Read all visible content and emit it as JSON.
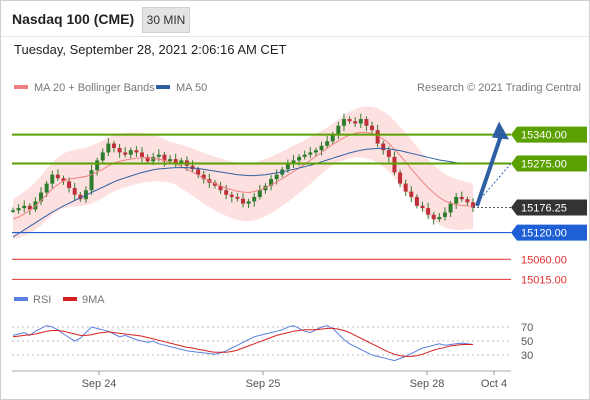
{
  "header": {
    "title": "Nasdaq 100 (CME)",
    "timeframe": "30 MIN",
    "datetime": "Tuesday, September 28, 2021 2:06:16 AM CET"
  },
  "legend": {
    "ma20": "MA 20 + Bollinger Bands",
    "ma50": "MA 50",
    "credit": "Research © 2021 Trading Central"
  },
  "colors": {
    "ma20": "#f08080",
    "ma50": "#2e5fa3",
    "bollinger_fill": "#fde0e0",
    "resistance": "#5aa000",
    "support": "#1e5fd6",
    "lower_levels": "#e03030",
    "candle": "#2e7d2e",
    "candle_down": "#c0303a",
    "arrow": "#2e5fa3",
    "last_price_badge": "#333333",
    "rsi": "#5b7fe0",
    "rsi_9ma": "#d62020"
  },
  "levels": [
    {
      "label": "15340.00",
      "value": 15340,
      "style": "green-badge"
    },
    {
      "label": "15275.00",
      "value": 15275,
      "style": "green-badge"
    },
    {
      "label": "15176.25",
      "value": 15176.25,
      "style": "dark-badge"
    },
    {
      "label": "15120.00",
      "value": 15120,
      "style": "blue-badge"
    },
    {
      "label": "15060.00",
      "value": 15060,
      "style": "red-text"
    },
    {
      "label": "15015.00",
      "value": 15015,
      "style": "red-text"
    }
  ],
  "rsi_panel": {
    "legend_rsi": "RSI",
    "legend_9ma": "9MA",
    "ticks": [
      "70",
      "50",
      "30"
    ]
  },
  "x_axis": {
    "labels": [
      "Sep 24",
      "Sep 25",
      "Sep 28",
      "Oct 4"
    ]
  },
  "chart_data": {
    "type": "candlestick",
    "ylim": [
      15000,
      15420
    ],
    "price_close": [
      15170,
      15175,
      15180,
      15172,
      15190,
      15210,
      15230,
      15250,
      15242,
      15235,
      15220,
      15205,
      15195,
      15215,
      15260,
      15282,
      15300,
      15320,
      15310,
      15300,
      15295,
      15305,
      15300,
      15290,
      15280,
      15290,
      15295,
      15280,
      15285,
      15275,
      15282,
      15270,
      15262,
      15250,
      15240,
      15232,
      15225,
      15215,
      15205,
      15200,
      15196,
      15185,
      15190,
      15200,
      15215,
      15225,
      15240,
      15250,
      15262,
      15275,
      15282,
      15290,
      15295,
      15300,
      15305,
      15315,
      15325,
      15340,
      15360,
      15375,
      15370,
      15365,
      15375,
      15360,
      15350,
      15320,
      15305,
      15290,
      15255,
      15230,
      15212,
      15200,
      15180,
      15175,
      15160,
      15150,
      15155,
      15165,
      15185,
      15200,
      15195,
      15188,
      15176
    ],
    "ma20": [
      15150,
      15155,
      15162,
      15170,
      15180,
      15192,
      15205,
      15218,
      15228,
      15236,
      15240,
      15242,
      15244,
      15246,
      15250,
      15256,
      15262,
      15270,
      15276,
      15280,
      15283,
      15285,
      15287,
      15288,
      15288,
      15287,
      15285,
      15282,
      15278,
      15274,
      15268,
      15262,
      15256,
      15249,
      15242,
      15236,
      15230,
      15225,
      15220,
      15216,
      15213,
      15211,
      15210,
      15212,
      15216,
      15221,
      15227,
      15234,
      15241,
      15249,
      15257,
      15265,
      15273,
      15282,
      15291,
      15300,
      15309,
      15318,
      15326,
      15333,
      15339,
      15343,
      15345,
      15345,
      15343,
      15338,
      15330,
      15320,
      15307,
      15293,
      15278,
      15263,
      15248,
      15234,
      15221,
      15209,
      15199,
      15191,
      15186,
      15183,
      15181,
      15180,
      15179
    ],
    "ma50": [
      15110,
      15118,
      15126,
      15134,
      15142,
      15150,
      15158,
      15166,
      15173,
      15180,
      15186,
      15192,
      15198,
      15204,
      15210,
      15216,
      15222,
      15228,
      15234,
      15239,
      15243,
      15247,
      15251,
      15255,
      15258,
      15261,
      15263,
      15264,
      15265,
      15266,
      15266,
      15266,
      15265,
      15264,
      15262,
      15260,
      15258,
      15256,
      15254,
      15252,
      15250,
      15249,
      15248,
      15248,
      15249,
      15250,
      15252,
      15254,
      15256,
      15259,
      15262,
      15265,
      15268,
      15271,
      15275,
      15279,
      15283,
      15287,
      15291,
      15295,
      15299,
      15302,
      15305,
      15307,
      15308,
      15309,
      15309,
      15308,
      15306,
      15304,
      15301,
      15298,
      15295,
      15292,
      15289,
      15286,
      15283,
      15281,
      15279,
      15277,
      15276,
      15275,
      15275
    ],
    "rsi": [
      58,
      60,
      62,
      58,
      64,
      68,
      72,
      70,
      66,
      60,
      55,
      50,
      54,
      62,
      70,
      68,
      66,
      64,
      60,
      56,
      58,
      55,
      52,
      50,
      48,
      50,
      46,
      44,
      42,
      40,
      38,
      36,
      35,
      34,
      33,
      32,
      31,
      33,
      36,
      40,
      44,
      48,
      52,
      56,
      58,
      60,
      62,
      64,
      66,
      70,
      72,
      68,
      64,
      62,
      66,
      70,
      72,
      68,
      60,
      52,
      46,
      42,
      38,
      34,
      30,
      28,
      26,
      24,
      22,
      25,
      28,
      32,
      36,
      40,
      42,
      44,
      46,
      44,
      45,
      46,
      47,
      46,
      45
    ],
    "rsi_9ma": [
      56,
      57,
      58,
      59,
      60,
      62,
      64,
      65,
      65,
      64,
      62,
      60,
      58,
      58,
      59,
      61,
      62,
      63,
      62,
      61,
      60,
      59,
      58,
      57,
      55,
      53,
      51,
      49,
      47,
      45,
      43,
      41,
      40,
      38,
      37,
      35,
      34,
      34,
      34,
      35,
      37,
      40,
      43,
      46,
      49,
      52,
      55,
      58,
      60,
      62,
      64,
      65,
      66,
      66,
      66,
      67,
      68,
      68,
      67,
      65,
      62,
      58,
      54,
      50,
      46,
      42,
      38,
      34,
      31,
      29,
      28,
      28,
      29,
      31,
      34,
      37,
      39,
      41,
      43,
      44,
      45,
      45,
      45
    ]
  }
}
